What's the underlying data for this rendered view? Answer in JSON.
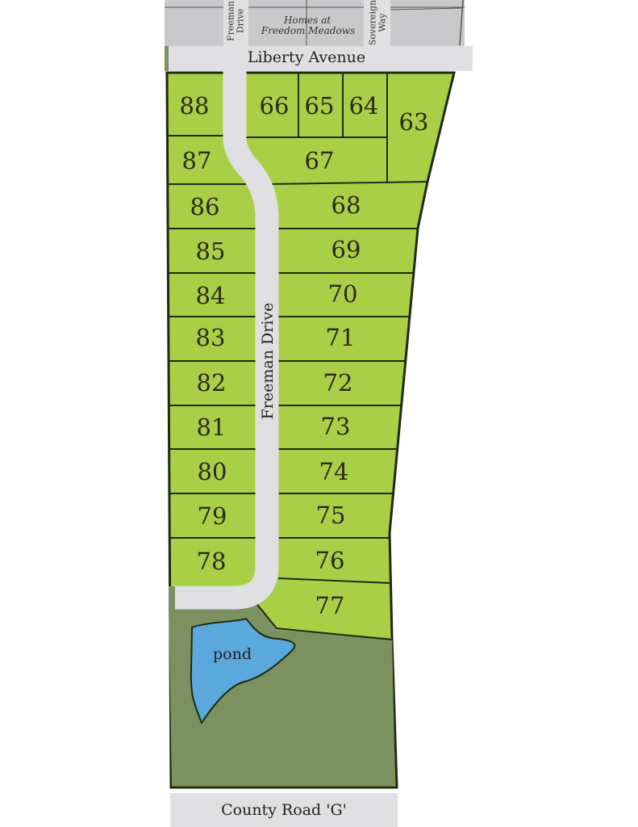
{
  "map": {
    "colors": {
      "lot": "#a8cf45",
      "open_space": "#7b9160",
      "pond": "#5aa8dc",
      "road": "#e0e0e2",
      "neighbor_block": "#c9c9cb",
      "boundary": "#1e2a14"
    },
    "roads": {
      "liberty": "Liberty Avenue",
      "freeman": "Freeman Drive",
      "freeman_top_line1": "Freeman",
      "freeman_top_line2": "Drive",
      "sovereign_line1": "Sovereign",
      "sovereign_line2": "Way",
      "county": "County Road 'G'"
    },
    "neighbor": {
      "line1": "Homes at",
      "line2": "Freedom Meadows"
    },
    "pond_label": "pond",
    "lots": {
      "west": [
        "88",
        "87",
        "86",
        "85",
        "84",
        "83",
        "82",
        "81",
        "80",
        "79",
        "78"
      ],
      "north": [
        "66",
        "65",
        "64",
        "63"
      ],
      "east": [
        "67",
        "68",
        "69",
        "70",
        "71",
        "72",
        "73",
        "74",
        "75",
        "76",
        "77"
      ]
    }
  }
}
